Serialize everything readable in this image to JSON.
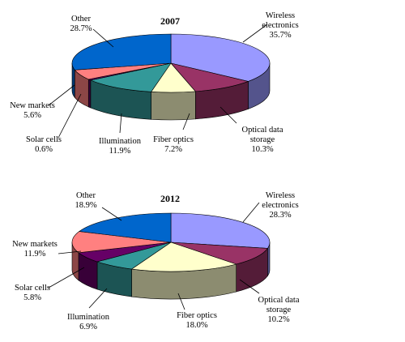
{
  "chart_data": [
    {
      "type": "pie",
      "title": "2007",
      "slices": [
        {
          "label": "Wireless electronics",
          "value": 35.7,
          "label_text": [
            "Wireless",
            "electronics",
            "35.7%"
          ],
          "color": "#9999FF"
        },
        {
          "label": "Optical data storage",
          "value": 10.3,
          "label_text": [
            "Optical data",
            "storage",
            "10.3%"
          ],
          "color": "#993366"
        },
        {
          "label": "Fiber optics",
          "value": 7.2,
          "label_text": [
            "Fiber optics",
            "7.2%"
          ],
          "color": "#FFFFCC"
        },
        {
          "label": "Illumination",
          "value": 11.9,
          "label_text": [
            "Illumination",
            "11.9%"
          ],
          "color": "#339999"
        },
        {
          "label": "Solar cells",
          "value": 0.6,
          "label_text": [
            "Solar cells",
            "0.6%"
          ],
          "color": "#660066"
        },
        {
          "label": "New markets",
          "value": 5.6,
          "label_text": [
            "New markets",
            "5.6%"
          ],
          "color": "#FF8080"
        },
        {
          "label": "Other",
          "value": 28.7,
          "label_text": [
            "Other",
            "28.7%"
          ],
          "color": "#0066CC"
        }
      ]
    },
    {
      "type": "pie",
      "title": "2012",
      "slices": [
        {
          "label": "Wireless electronics",
          "value": 28.3,
          "label_text": [
            "Wireless",
            "electronics",
            "28.3%"
          ],
          "color": "#9999FF"
        },
        {
          "label": "Optical data storage",
          "value": 10.2,
          "label_text": [
            "Optical data",
            "storage",
            "10.2%"
          ],
          "color": "#993366"
        },
        {
          "label": "Fiber optics",
          "value": 18.0,
          "label_text": [
            "Fiber optics",
            "18.0%"
          ],
          "color": "#FFFFCC"
        },
        {
          "label": "Illumination",
          "value": 6.9,
          "label_text": [
            "Illumination",
            "6.9%"
          ],
          "color": "#339999"
        },
        {
          "label": "Solar cells",
          "value": 5.8,
          "label_text": [
            "Solar cells",
            "5.8%"
          ],
          "color": "#660066"
        },
        {
          "label": "New markets",
          "value": 11.9,
          "label_text": [
            "New markets",
            "11.9%"
          ],
          "color": "#FF8080"
        },
        {
          "label": "Other",
          "value": 18.9,
          "label_text": [
            "Other",
            "18.9%"
          ],
          "color": "#0066CC"
        }
      ]
    }
  ]
}
